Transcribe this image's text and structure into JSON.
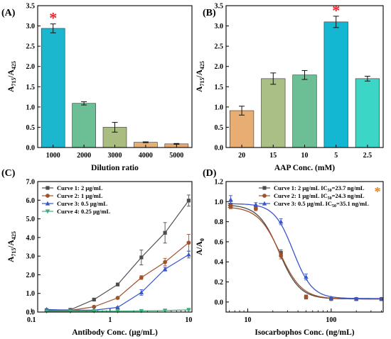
{
  "chart_data": [
    {
      "panel_label": "(A)",
      "type": "bar",
      "xlabel": "Dilution ratio",
      "ylabel_main": "A",
      "ylabel_sub1": "715",
      "ylabel_mid": "/A",
      "ylabel_sub2": "425",
      "categories": [
        "1000",
        "2000",
        "3000",
        "4000",
        "5000"
      ],
      "values": [
        2.94,
        1.09,
        0.5,
        0.13,
        0.09
      ],
      "errors": [
        0.11,
        0.04,
        0.12,
        0.01,
        0.01
      ],
      "colors": [
        "#1ab7cf",
        "#6cbf95",
        "#a8bd7f",
        "#e4b078",
        "#e8a96f"
      ],
      "ylim": [
        0,
        3.5
      ],
      "yticks": [
        "0.0",
        "0.5",
        "1.0",
        "1.5",
        "2.0",
        "2.5",
        "3.0",
        "3.5"
      ],
      "annotation": "*",
      "annotation_index": 0
    },
    {
      "panel_label": "(B)",
      "type": "bar",
      "xlabel": "AAP Conc. (mM)",
      "ylabel_main": "A",
      "ylabel_sub1": "715",
      "ylabel_mid": "/A",
      "ylabel_sub2": "425",
      "categories": [
        "20",
        "15",
        "10",
        "5",
        "2.5"
      ],
      "values": [
        0.91,
        1.7,
        1.79,
        3.1,
        1.7
      ],
      "errors": [
        0.11,
        0.14,
        0.11,
        0.14,
        0.06
      ],
      "colors": [
        "#e8ad72",
        "#a9bf85",
        "#6cbe95",
        "#14b7d1",
        "#3cd6c6"
      ],
      "ylim": [
        0,
        3.5
      ],
      "yticks": [
        "0.0",
        "0.5",
        "1.0",
        "1.5",
        "2.0",
        "2.5",
        "3.0",
        "3.5"
      ],
      "annotation": "*",
      "annotation_index": 3
    },
    {
      "panel_label": "(C)",
      "type": "line",
      "xscale": "log",
      "xlabel": "Antibody Conc. (μg/mL)",
      "ylabel_main": "A",
      "ylabel_sub1": "715",
      "ylabel_mid": "/A",
      "ylabel_sub2": "425",
      "xlim": [
        0.12,
        11
      ],
      "ylim": [
        0,
        7
      ],
      "xticks": [
        0.1,
        1,
        10
      ],
      "xtick_labels": [
        "0.1",
        "1",
        "10"
      ],
      "yticks": [
        "0.0",
        "1.0",
        "2.0",
        "3.0",
        "4.0",
        "5.0",
        "6.0",
        "7.0"
      ],
      "ytick_values": [
        0,
        1,
        2,
        3,
        4,
        5,
        6,
        7
      ],
      "x": [
        0.156,
        0.3125,
        0.625,
        1.25,
        2.5,
        5,
        10
      ],
      "legend_position": "top-left",
      "series": [
        {
          "name": "Curve 1: 2 μg/mL",
          "color": "#4d4d4d",
          "marker": "square",
          "values": [
            0.1,
            0.12,
            0.67,
            1.48,
            2.93,
            4.25,
            5.98
          ],
          "errors": [
            0.02,
            0.02,
            0.05,
            0.08,
            0.4,
            0.55,
            0.3
          ]
        },
        {
          "name": "Curve 2: 1 μg/mL",
          "color": "#a0522d",
          "marker": "circle",
          "values": [
            0.08,
            0.09,
            0.28,
            0.76,
            1.85,
            2.68,
            3.72
          ],
          "errors": [
            0.02,
            0.02,
            0.03,
            0.05,
            0.1,
            0.2,
            0.45
          ]
        },
        {
          "name": "Curve 3: 0.5 μg/mL",
          "color": "#3a56c8",
          "marker": "triangle-up",
          "values": [
            0.14,
            0.1,
            0.1,
            0.25,
            1.05,
            2.3,
            3.08
          ],
          "errors": [
            0.02,
            0.02,
            0.02,
            0.04,
            0.15,
            0.1,
            0.18
          ]
        },
        {
          "name": "Curve 4: 0.25 μg/mL",
          "color": "#3fae7a",
          "marker": "triangle-down",
          "values": [
            0.04,
            0.04,
            0.05,
            0.05,
            0.06,
            0.08,
            0.12
          ],
          "errors": [
            0.01,
            0.01,
            0.01,
            0.01,
            0.01,
            0.01,
            0.02
          ]
        }
      ]
    },
    {
      "panel_label": "(D)",
      "type": "line",
      "xscale": "log",
      "xlabel": "Isocarbophos Conc. (ng/mL)",
      "ylabel_main": "A/A",
      "ylabel_sub1": "0",
      "ylabel_mid": "",
      "ylabel_sub2": "",
      "xlim": [
        5.5,
        420
      ],
      "ylim": [
        -0.1,
        1.2
      ],
      "xticks": [
        10,
        100
      ],
      "xtick_labels": [
        "10",
        "100"
      ],
      "yticks": [
        "0.0",
        "0.2",
        "0.4",
        "0.6",
        "0.8",
        "1.0",
        "1.2"
      ],
      "ytick_values": [
        0,
        0.2,
        0.4,
        0.6,
        0.8,
        1.0,
        1.2
      ],
      "x": [
        6.25,
        12.5,
        25,
        50,
        100,
        200,
        400
      ],
      "legend_position": "top-right",
      "annotation": "*",
      "series": [
        {
          "name": "Curve 1: 2 μg/mL IC",
          "ic_sub": "50",
          "ic_value": "=23.7 ng/mL",
          "color": "#4d4d4d",
          "marker": "square",
          "values": [
            0.97,
            0.94,
            0.49,
            0.05,
            0.03,
            0.03,
            0.03
          ],
          "errors": [
            0.03,
            0.02,
            0.03,
            0.02,
            0.01,
            0.01,
            0.01
          ],
          "ic50": 23.7,
          "top": 0.97,
          "bottom": 0.03,
          "slope": 3.5
        },
        {
          "name": "Curve 2: 1 μg/mL IC",
          "ic_sub": "50",
          "ic_value": "=24.3 ng/mL",
          "color": "#a0522d",
          "marker": "circle",
          "values": [
            0.95,
            0.93,
            0.46,
            0.05,
            0.03,
            0.03,
            0.03
          ],
          "errors": [
            0.02,
            0.02,
            0.03,
            0.02,
            0.01,
            0.01,
            0.01
          ],
          "ic50": 24.3,
          "top": 0.95,
          "bottom": 0.03,
          "slope": 3.3
        },
        {
          "name": "Curve 3: 0.5 μg/mL IC",
          "ic_sub": "50",
          "ic_value": "=35.1 ng/mL",
          "color": "#3a56c8",
          "marker": "triangle-up",
          "values": [
            1.02,
            0.97,
            0.8,
            0.25,
            0.04,
            0.03,
            0.03
          ],
          "errors": [
            0.04,
            0.02,
            0.03,
            0.03,
            0.01,
            0.01,
            0.01
          ],
          "ic50": 35.1,
          "top": 0.98,
          "bottom": 0.035,
          "slope": 3.8
        }
      ]
    }
  ]
}
